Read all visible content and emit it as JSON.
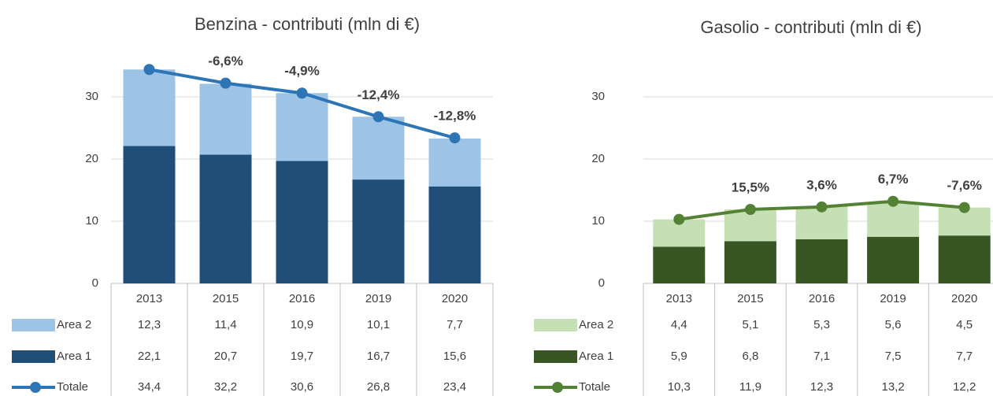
{
  "chart_data": [
    {
      "type": "bar",
      "title": "Benzina - contributi (mln di €)",
      "categories": [
        "2013",
        "2015",
        "2016",
        "2019",
        "2020"
      ],
      "series": [
        {
          "name": "Area 2",
          "type": "bar",
          "color": "#9dc3e6",
          "values": [
            12.3,
            11.4,
            10.9,
            10.1,
            7.7
          ],
          "value_labels": [
            "12,3",
            "11,4",
            "10,9",
            "10,1",
            "7,7"
          ]
        },
        {
          "name": "Area 1",
          "type": "bar",
          "color": "#1f4e79",
          "values": [
            22.1,
            20.7,
            19.7,
            16.7,
            15.6
          ],
          "value_labels": [
            "22,1",
            "20,7",
            "19,7",
            "16,7",
            "15,6"
          ]
        },
        {
          "name": "Totale",
          "type": "line",
          "color": "#2e75b6",
          "values": [
            34.4,
            32.2,
            30.6,
            26.8,
            23.4
          ],
          "value_labels": [
            "34,4",
            "32,2",
            "30,6",
            "26,8",
            "23,4"
          ]
        }
      ],
      "annotations": [
        null,
        "-6,6%",
        "-4,9%",
        "-12,4%",
        "-12,8%"
      ],
      "annotation_color": "#1f4e79",
      "ylim": [
        0,
        40
      ],
      "yticks": [
        0,
        10,
        20,
        30
      ],
      "grid": true
    },
    {
      "type": "bar",
      "title": "Gasolio - contributi (mln di €)",
      "categories": [
        "2013",
        "2015",
        "2016",
        "2019",
        "2020"
      ],
      "series": [
        {
          "name": "Area 2",
          "type": "bar",
          "color": "#c5e0b4",
          "values": [
            4.4,
            5.1,
            5.3,
            5.6,
            4.5
          ],
          "value_labels": [
            "4,4",
            "5,1",
            "5,3",
            "5,6",
            "4,5"
          ]
        },
        {
          "name": "Area 1",
          "type": "bar",
          "color": "#375623",
          "values": [
            5.9,
            6.8,
            7.1,
            7.5,
            7.7
          ],
          "value_labels": [
            "5,9",
            "6,8",
            "7,1",
            "7,5",
            "7,7"
          ]
        },
        {
          "name": "Totale",
          "type": "line",
          "color": "#548235",
          "values": [
            10.3,
            11.9,
            12.3,
            13.2,
            12.2
          ],
          "value_labels": [
            "10,3",
            "11,9",
            "12,3",
            "13,2",
            "12,2"
          ]
        }
      ],
      "annotations": [
        null,
        "15,5%",
        "3,6%",
        "6,7%",
        "-7,6%"
      ],
      "annotation_color": "#548235",
      "ylim": [
        0,
        40
      ],
      "yticks": [
        0,
        10,
        20,
        30
      ],
      "grid": true
    }
  ]
}
